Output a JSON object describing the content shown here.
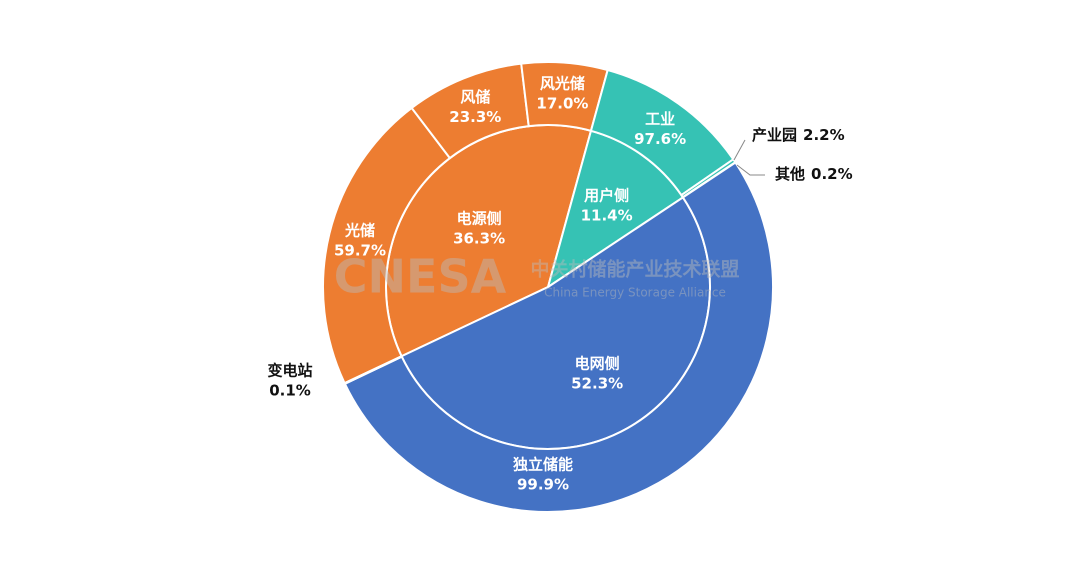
{
  "chart_data": {
    "type": "sunburst",
    "watermark": {
      "logo": "CNESA",
      "name": "中关村储能产业技术联盟",
      "name_en": "China Energy Storage Alliance"
    },
    "categories": [
      "电源侧",
      "用户侧",
      "电网侧"
    ],
    "values": [
      36.3,
      11.4,
      52.3
    ],
    "value_labels": [
      "36.3%",
      "11.4%",
      "52.3%"
    ],
    "colors": [
      "#ED7D31",
      "#36C2B4",
      "#4472C4"
    ],
    "children": [
      {
        "categories": [
          "光储",
          "风储",
          "风光储"
        ],
        "values": [
          59.7,
          23.3,
          17.0
        ],
        "value_labels": [
          "59.7%",
          "23.3%",
          "17.0%"
        ]
      },
      {
        "categories": [
          "工业",
          "产业园",
          "其他"
        ],
        "values": [
          97.6,
          2.2,
          0.2
        ],
        "value_labels": [
          "97.6%",
          "2.2%",
          "0.2%"
        ]
      },
      {
        "categories": [
          "独立储能",
          "变电站"
        ],
        "values": [
          99.9,
          0.1
        ],
        "value_labels": [
          "99.9%",
          "0.1%"
        ]
      }
    ]
  }
}
